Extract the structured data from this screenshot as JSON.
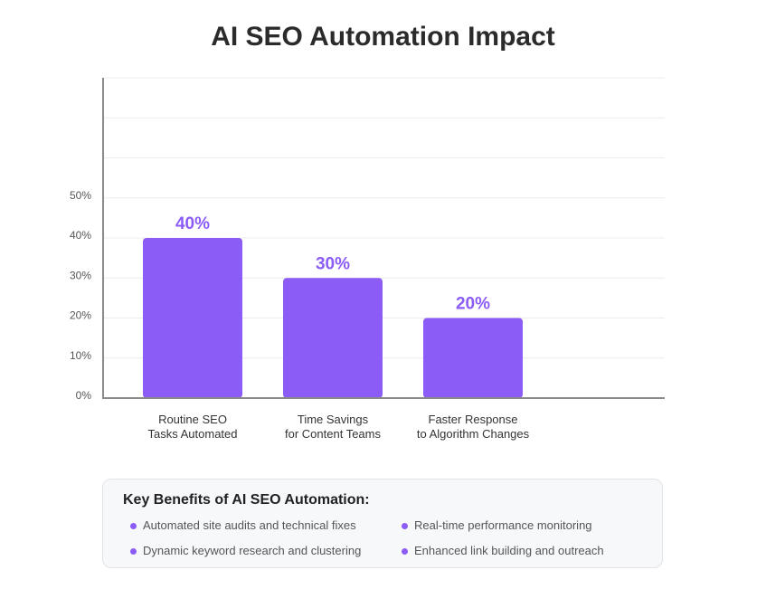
{
  "chart_data": {
    "type": "bar",
    "title": "AI SEO Automation Impact",
    "categories": [
      [
        "Routine SEO",
        "Tasks Automated"
      ],
      [
        "Time Savings",
        "for Content Teams"
      ],
      [
        "Faster Response",
        "to Algorithm Changes"
      ]
    ],
    "values": [
      40,
      30,
      20
    ],
    "value_labels": [
      "40%",
      "30%",
      "20%"
    ],
    "ylim": [
      0,
      80
    ],
    "yticks": [
      0,
      10,
      20,
      30,
      40,
      50
    ],
    "ytick_labels": [
      "0%",
      "10%",
      "20%",
      "30%",
      "40%",
      "50%"
    ],
    "grid": true,
    "bar_color": "#8b5cf6",
    "label_color": "#8b5cf6"
  },
  "benefits": {
    "heading": "Key Benefits of AI SEO Automation:",
    "items": [
      "Automated site audits and technical fixes",
      "Real-time performance monitoring",
      "Dynamic keyword research and clustering",
      "Enhanced link building and outreach"
    ],
    "dot_color": "#8b5cf6"
  }
}
